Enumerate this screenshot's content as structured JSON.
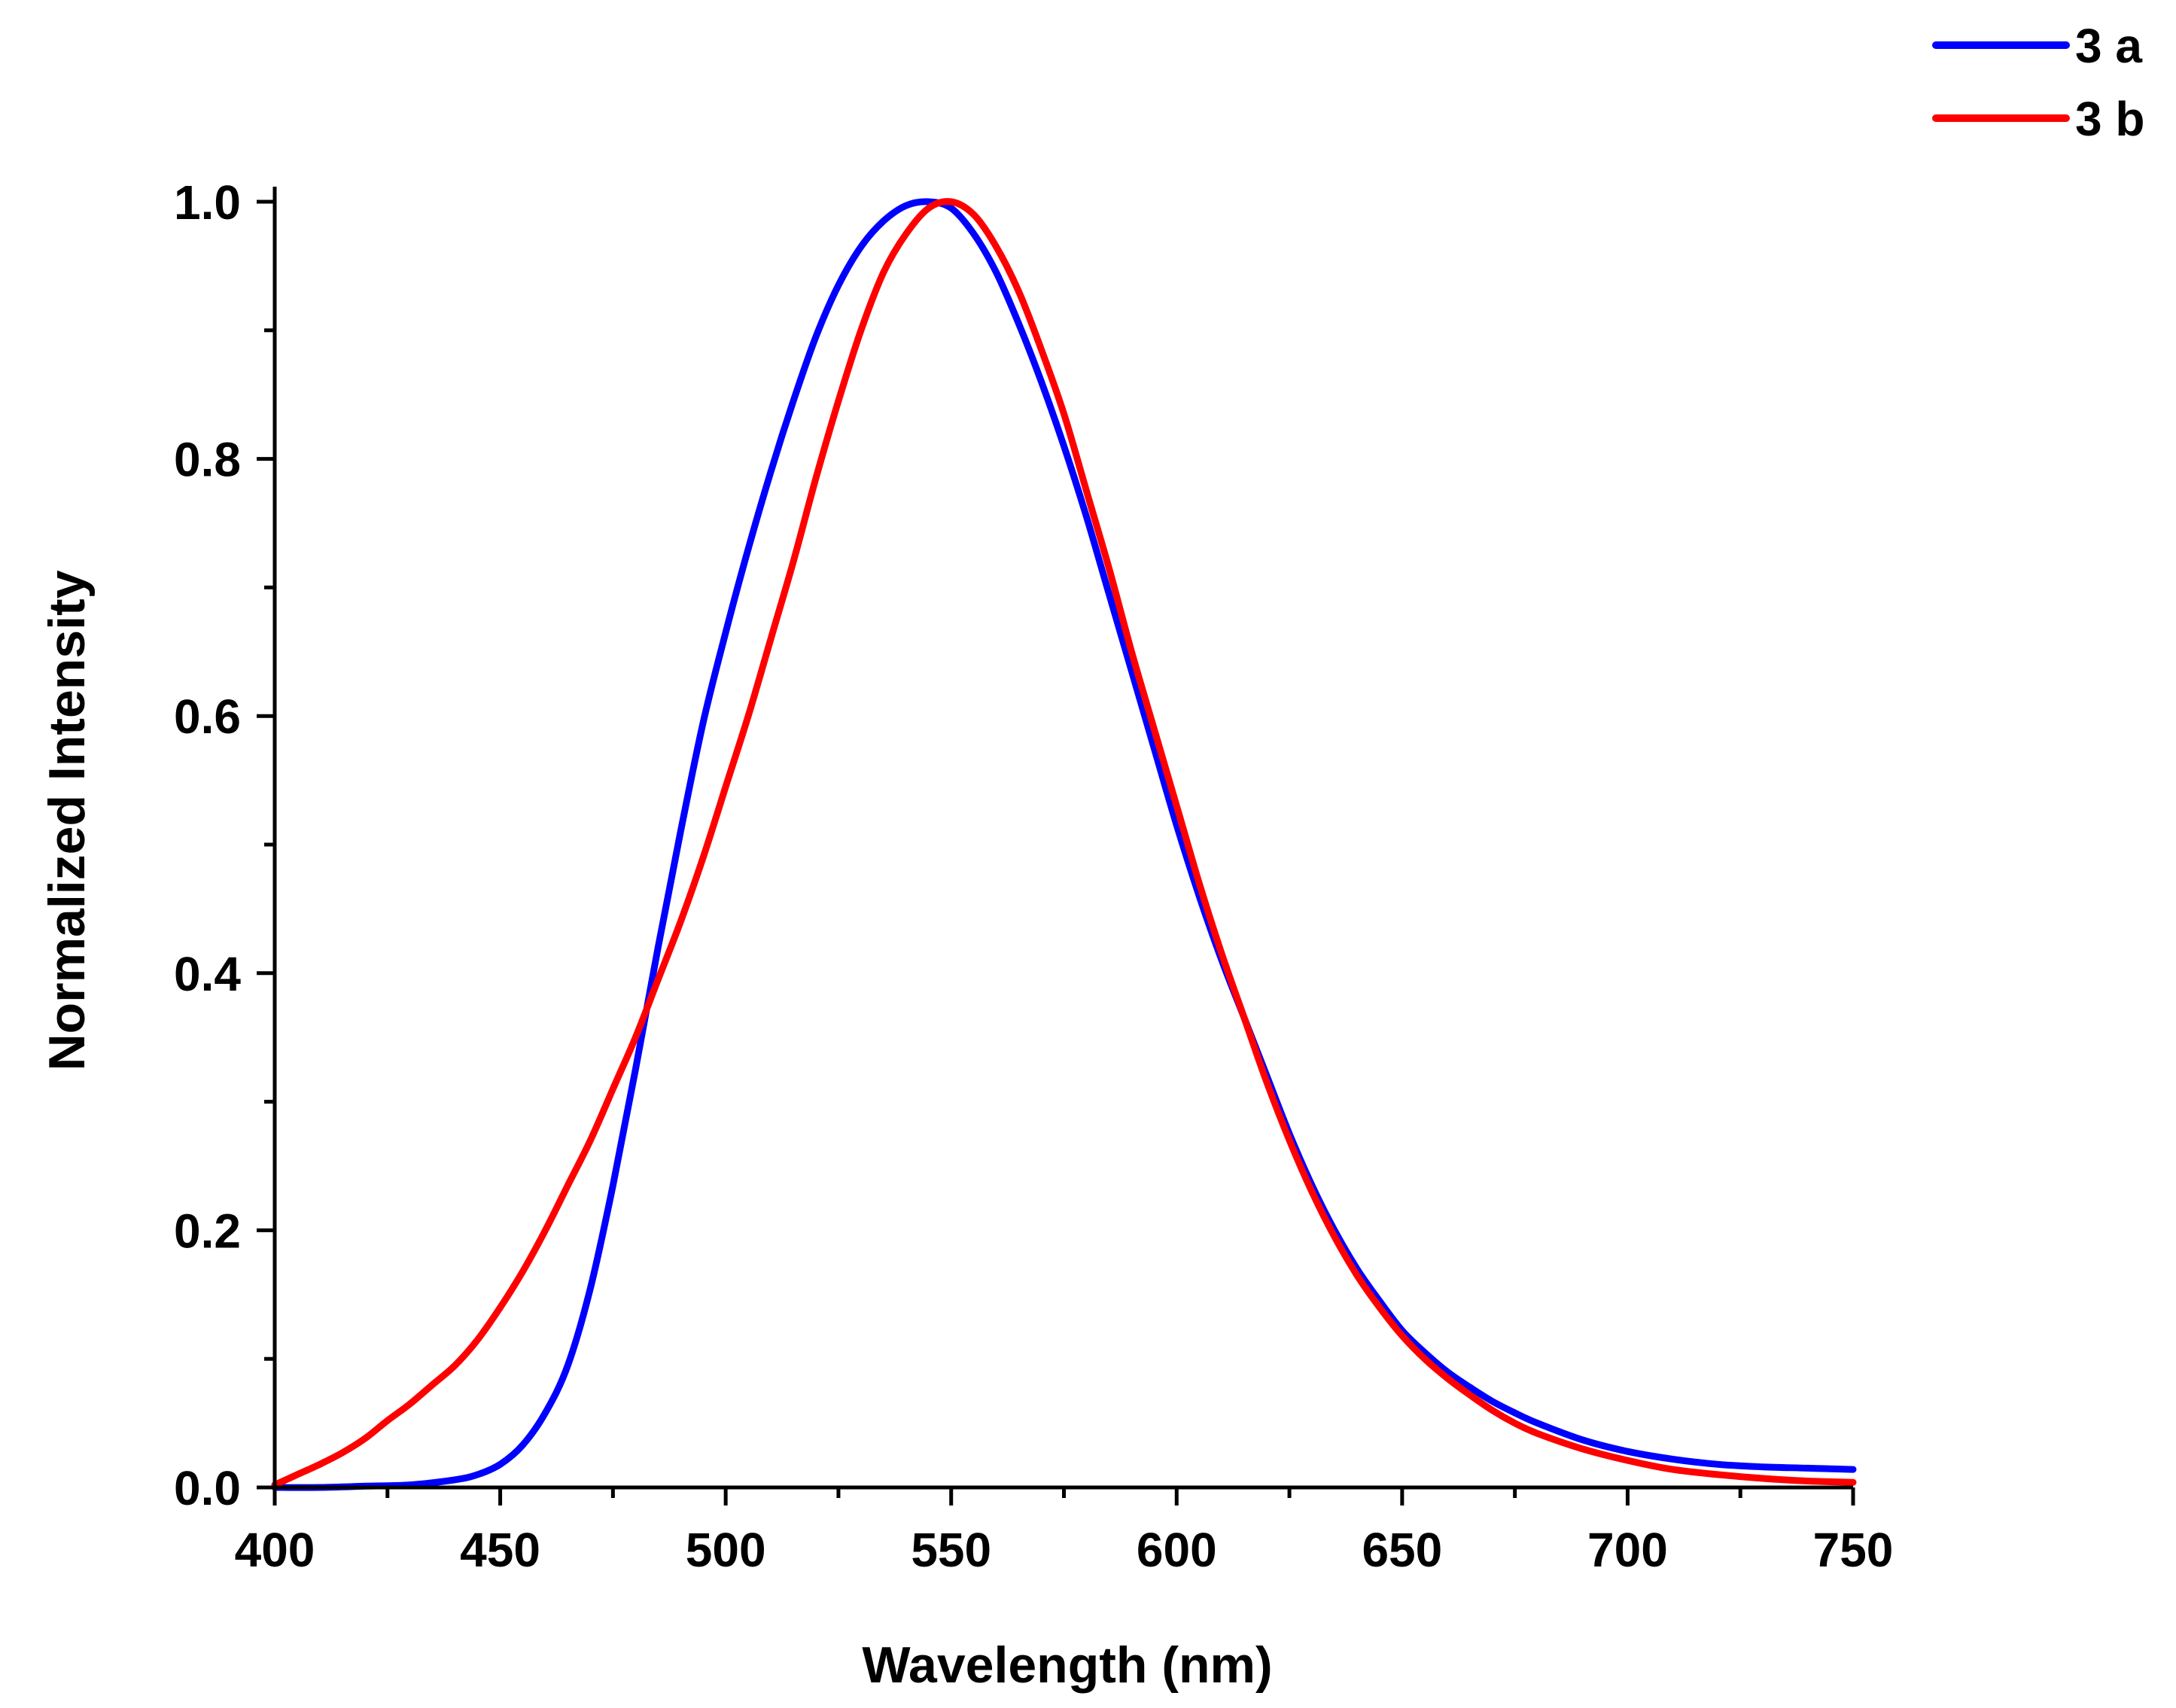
{
  "chart_data": {
    "type": "line",
    "title": "",
    "xlabel": "Wavelength (nm)",
    "ylabel": "Normalized Intensity",
    "xlim": [
      400,
      750
    ],
    "ylim": [
      0,
      1.0
    ],
    "x_ticks": [
      400,
      450,
      500,
      550,
      600,
      650,
      700,
      750
    ],
    "x_tick_labels": [
      "400",
      "450",
      "500",
      "550",
      "600",
      "650",
      "700",
      "750"
    ],
    "y_ticks": [
      0.0,
      0.2,
      0.4,
      0.6,
      0.8,
      1.0
    ],
    "y_tick_labels": [
      "0.0",
      "0.2",
      "0.4",
      "0.6",
      "0.8",
      "1.0"
    ],
    "grid": false,
    "legend_position": "top-right",
    "series": [
      {
        "name": "3 a",
        "color": "#0000ff",
        "x": [
          400,
          410,
          420,
          430,
          440,
          445,
          450,
          455,
          460,
          465,
          470,
          475,
          480,
          485,
          490,
          495,
          500,
          505,
          510,
          515,
          520,
          525,
          530,
          535,
          540,
          545,
          550,
          555,
          560,
          565,
          570,
          575,
          580,
          585,
          590,
          595,
          600,
          605,
          610,
          615,
          620,
          625,
          630,
          635,
          640,
          645,
          650,
          655,
          660,
          665,
          670,
          675,
          680,
          690,
          700,
          710,
          720,
          730,
          740,
          750
        ],
        "y": [
          0.0,
          0.0,
          0.001,
          0.002,
          0.006,
          0.01,
          0.018,
          0.033,
          0.058,
          0.095,
          0.155,
          0.235,
          0.325,
          0.42,
          0.51,
          0.595,
          0.665,
          0.73,
          0.79,
          0.845,
          0.895,
          0.935,
          0.965,
          0.985,
          0.997,
          1.0,
          0.995,
          0.975,
          0.945,
          0.905,
          0.86,
          0.81,
          0.755,
          0.695,
          0.635,
          0.575,
          0.515,
          0.46,
          0.41,
          0.365,
          0.32,
          0.275,
          0.235,
          0.2,
          0.17,
          0.145,
          0.122,
          0.105,
          0.09,
          0.078,
          0.067,
          0.058,
          0.05,
          0.037,
          0.028,
          0.022,
          0.018,
          0.016,
          0.015,
          0.014
        ]
      },
      {
        "name": "3 b",
        "color": "#ff0000",
        "x": [
          400,
          405,
          410,
          415,
          420,
          425,
          430,
          435,
          440,
          445,
          450,
          455,
          460,
          465,
          470,
          475,
          480,
          485,
          490,
          495,
          500,
          505,
          510,
          515,
          520,
          525,
          530,
          535,
          540,
          545,
          550,
          555,
          560,
          565,
          570,
          575,
          580,
          585,
          590,
          595,
          600,
          605,
          610,
          615,
          620,
          625,
          630,
          635,
          640,
          645,
          650,
          655,
          660,
          665,
          670,
          675,
          680,
          690,
          700,
          710,
          720,
          730,
          740,
          750
        ],
        "y": [
          0.002,
          0.01,
          0.018,
          0.027,
          0.038,
          0.052,
          0.065,
          0.08,
          0.095,
          0.115,
          0.14,
          0.168,
          0.2,
          0.235,
          0.27,
          0.31,
          0.35,
          0.395,
          0.44,
          0.49,
          0.545,
          0.6,
          0.66,
          0.72,
          0.785,
          0.845,
          0.9,
          0.945,
          0.975,
          0.995,
          1.0,
          0.99,
          0.965,
          0.93,
          0.885,
          0.835,
          0.775,
          0.715,
          0.65,
          0.59,
          0.53,
          0.47,
          0.415,
          0.365,
          0.315,
          0.27,
          0.23,
          0.195,
          0.165,
          0.14,
          0.118,
          0.1,
          0.085,
          0.072,
          0.06,
          0.05,
          0.042,
          0.03,
          0.021,
          0.014,
          0.01,
          0.007,
          0.005,
          0.004
        ]
      }
    ]
  }
}
